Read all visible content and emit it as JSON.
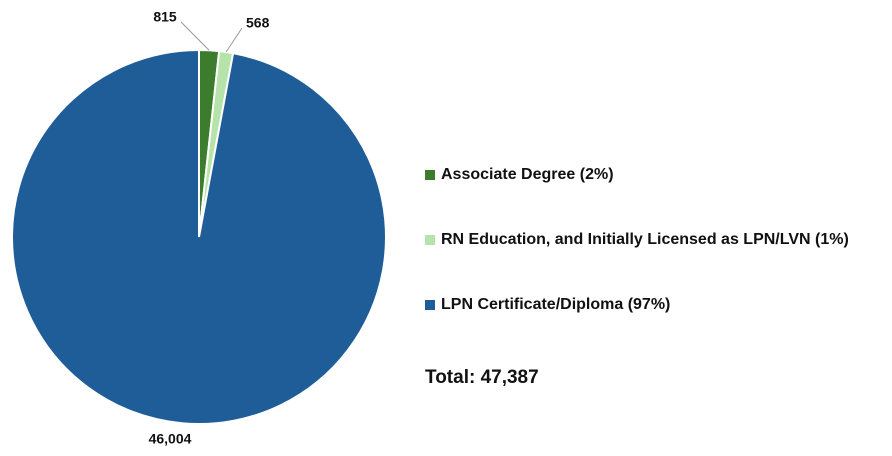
{
  "chart_data": {
    "type": "pie",
    "categories": [
      "Associate Degree (2%)",
      "RN Education, and Initially Licensed as LPN/LVN (1%)",
      "LPN Certificate/Diploma (97%)"
    ],
    "values": [
      815,
      568,
      46004
    ],
    "value_labels": [
      "815",
      "568",
      "46,004"
    ],
    "colors": [
      "#3b7d2d",
      "#b6e3a9",
      "#1f5d99"
    ],
    "legend": "right",
    "annotation": "Total: 47,387"
  }
}
